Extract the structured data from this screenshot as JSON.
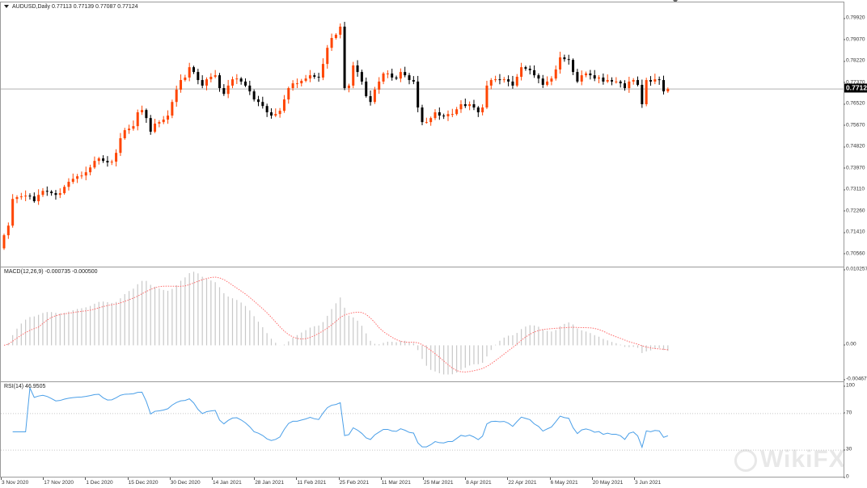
{
  "header": {
    "symbol_info": "AUDUSD,Daily  0.77113 0.77139 0.77087 0.77124"
  },
  "colors": {
    "bull": "#ff4500",
    "bear": "#000000",
    "signal": "#ff6b6b",
    "macd_bar": "#c8c8c8",
    "rsi": "#4a9fe8",
    "priceline": "#b0b0b0"
  },
  "watermark": {
    "logo_text": "WikiFX"
  },
  "chart_data": [
    {
      "type": "candlestick",
      "title": "AUDUSD,Daily",
      "current_price": "0.77124",
      "last_ohlc": {
        "open": 0.77113,
        "high": 0.77139,
        "low": 0.77087,
        "close": 0.77124
      },
      "ylim": [
        0.7028,
        0.8031
      ],
      "y_ticks": [
        "0.79920",
        "0.79070",
        "0.78220",
        "0.77370",
        "0.76520",
        "0.75670",
        "0.74820",
        "0.73970",
        "0.73110",
        "0.72260",
        "0.71410",
        "0.70560"
      ],
      "x_ticks": [
        "3 Nov 2020",
        "17 Nov 2020",
        "1 Dec 2020",
        "15 Dec 2020",
        "30 Dec 2020",
        "14 Jan 2021",
        "28 Jan 2021",
        "11 Feb 2021",
        "25 Feb 2021",
        "11 Mar 2021",
        "25 Mar 2021",
        "8 Apr 2021",
        "22 Apr 2021",
        "6 May 2021",
        "20 May 2021",
        "3 Jun 2021"
      ],
      "first_open": 0.708,
      "closes": [
        0.7132,
        0.717,
        0.7276,
        0.7283,
        0.7286,
        0.7289,
        0.7286,
        0.7267,
        0.7292,
        0.7308,
        0.7305,
        0.7299,
        0.7292,
        0.7299,
        0.7324,
        0.7344,
        0.7356,
        0.7366,
        0.7369,
        0.7382,
        0.7401,
        0.7427,
        0.7437,
        0.7427,
        0.7421,
        0.7424,
        0.7459,
        0.7517,
        0.7549,
        0.7555,
        0.7565,
        0.762,
        0.7629,
        0.7597,
        0.7543,
        0.7575,
        0.7581,
        0.7591,
        0.7607,
        0.7661,
        0.771,
        0.7748,
        0.7758,
        0.7799,
        0.778,
        0.7748,
        0.7726,
        0.7751,
        0.7761,
        0.7767,
        0.7716,
        0.7693,
        0.7726,
        0.7751,
        0.7754,
        0.7742,
        0.7726,
        0.7703,
        0.7671,
        0.7661,
        0.7645,
        0.762,
        0.7607,
        0.7613,
        0.7626,
        0.7671,
        0.7716,
        0.7735,
        0.7735,
        0.7745,
        0.7754,
        0.7767,
        0.7761,
        0.7758,
        0.7812,
        0.7876,
        0.7915,
        0.7928,
        0.796,
        0.7716,
        0.7726,
        0.7806,
        0.778,
        0.7742,
        0.7684,
        0.7661,
        0.771,
        0.7742,
        0.7774,
        0.7774,
        0.7758,
        0.7754,
        0.778,
        0.7767,
        0.7748,
        0.7742,
        0.7639,
        0.7581,
        0.7581,
        0.7597,
        0.762,
        0.7607,
        0.7604,
        0.7613,
        0.7613,
        0.7632,
        0.7652,
        0.7645,
        0.7652,
        0.7639,
        0.762,
        0.7639,
        0.7726,
        0.7748,
        0.7751,
        0.7748,
        0.7751,
        0.7742,
        0.7726,
        0.7761,
        0.7799,
        0.7793,
        0.7787,
        0.7767,
        0.7754,
        0.7729,
        0.7742,
        0.7754,
        0.779,
        0.7838,
        0.7831,
        0.7828,
        0.778,
        0.7742,
        0.7767,
        0.7774,
        0.7767,
        0.7754,
        0.7758,
        0.7742,
        0.7748,
        0.7742,
        0.7742,
        0.7735,
        0.7716,
        0.7742,
        0.7748,
        0.7729,
        0.7652,
        0.7748,
        0.7742,
        0.7751,
        0.7748,
        0.7703,
        0.77124
      ]
    },
    {
      "type": "bar+line",
      "title": "MACD(12,26,9) -0.000735 -0.000500",
      "ylim": [
        -0.004677,
        0.010257
      ],
      "y_ticks": [
        "0.010257",
        "0.00",
        "-0.004677"
      ],
      "series": [
        {
          "name": "MACD",
          "style": "histogram"
        },
        {
          "name": "Signal",
          "style": "dotted"
        }
      ]
    },
    {
      "type": "line",
      "title": "RSI(14) 46.9505",
      "ylim": [
        0,
        100
      ],
      "levels": [
        70,
        30
      ],
      "y_ticks": [
        "100",
        "70",
        "30",
        "0"
      ]
    }
  ]
}
